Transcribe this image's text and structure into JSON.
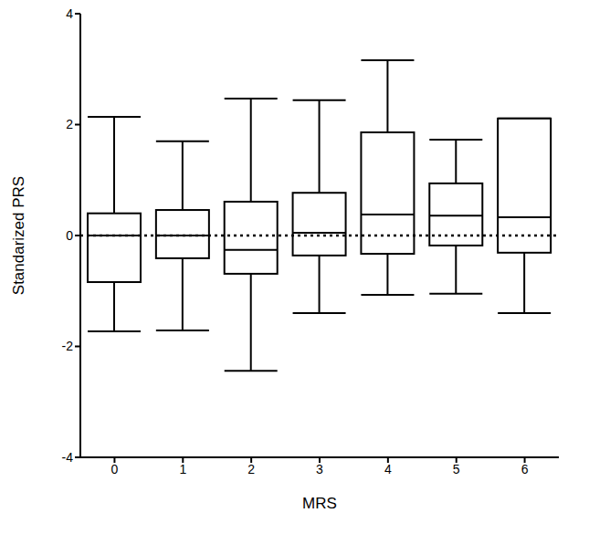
{
  "chart_data": {
    "type": "box",
    "x_label": "MRS",
    "y_label": "Standarized PRS",
    "categories": [
      "0",
      "1",
      "2",
      "3",
      "4",
      "5",
      "6"
    ],
    "whisker_low": [
      -1.73,
      -1.71,
      -2.44,
      -1.4,
      -1.07,
      -1.05,
      -1.4
    ],
    "q1": [
      -0.84,
      -0.41,
      -0.69,
      -0.36,
      -0.33,
      -0.18,
      -0.31
    ],
    "median": [
      0,
      0,
      -0.26,
      0.05,
      0.38,
      0.36,
      0.33
    ],
    "q3": [
      0.4,
      0.46,
      0.61,
      0.77,
      1.86,
      0.94,
      2.11
    ],
    "whisker_high": [
      2.14,
      1.7,
      2.47,
      2.44,
      3.16,
      1.73,
      2.11
    ],
    "ylim": [
      -4,
      4
    ],
    "yticks": [
      -4,
      -2,
      0,
      2,
      4
    ],
    "reference_line": 0,
    "color": "#000000"
  }
}
